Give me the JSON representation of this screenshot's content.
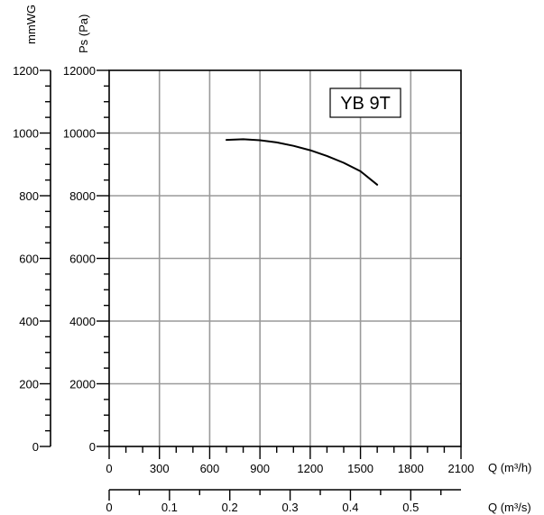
{
  "chart_data": {
    "type": "line",
    "model_label": "YB 9T",
    "grid": true,
    "x_axis": {
      "label": "Q (m³/h)",
      "range": [
        0,
        2100
      ],
      "ticks": [
        "0",
        "300",
        "600",
        "900",
        "1200",
        "1500",
        "1800",
        "2100"
      ]
    },
    "x2_axis": {
      "label": "Q (m³/s)",
      "range": [
        0,
        0.5833
      ],
      "ticks": [
        "0",
        "0.1",
        "0.2",
        "0.3",
        "0.4",
        "0.5"
      ]
    },
    "y_axis": {
      "label": "Ps (Pa)",
      "range": [
        0,
        12000
      ],
      "ticks": [
        "0",
        "2000",
        "4000",
        "6000",
        "8000",
        "10000",
        "12000"
      ]
    },
    "y2_axis": {
      "label": "mmWG",
      "range": [
        0,
        1200
      ],
      "ticks": [
        "0",
        "200",
        "400",
        "600",
        "800",
        "1000",
        "1200"
      ]
    },
    "series": [
      {
        "x": [
          700,
          800,
          900,
          1000,
          1100,
          1200,
          1300,
          1400,
          1500,
          1600
        ],
        "y": [
          9780,
          9800,
          9770,
          9700,
          9590,
          9450,
          9270,
          9050,
          8780,
          8350
        ]
      }
    ]
  }
}
